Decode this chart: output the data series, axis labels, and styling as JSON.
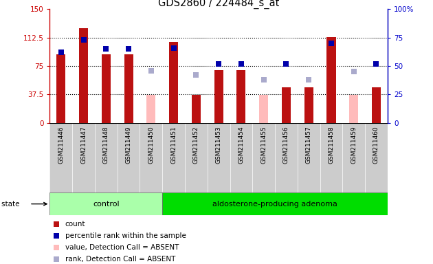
{
  "title": "GDS2860 / 224484_s_at",
  "samples": [
    "GSM211446",
    "GSM211447",
    "GSM211448",
    "GSM211449",
    "GSM211450",
    "GSM211451",
    "GSM211452",
    "GSM211453",
    "GSM211454",
    "GSM211455",
    "GSM211456",
    "GSM211457",
    "GSM211458",
    "GSM211459",
    "GSM211460"
  ],
  "count_present": [
    90,
    125,
    90,
    90,
    null,
    107,
    37,
    70,
    70,
    null,
    47,
    47,
    113,
    null,
    47
  ],
  "count_absent": [
    null,
    null,
    null,
    null,
    37,
    null,
    null,
    null,
    null,
    37,
    null,
    null,
    null,
    37,
    null
  ],
  "rank_present": [
    62,
    73,
    65,
    65,
    null,
    66,
    null,
    52,
    52,
    null,
    52,
    null,
    70,
    null,
    52
  ],
  "rank_absent": [
    null,
    null,
    null,
    null,
    46,
    null,
    42,
    null,
    null,
    38,
    null,
    38,
    null,
    45,
    null
  ],
  "n_control": 5,
  "n_adenoma": 10,
  "ylim_left": [
    0,
    150
  ],
  "ylim_right": [
    0,
    100
  ],
  "yticks_left": [
    0,
    37.5,
    75,
    112.5,
    150
  ],
  "ytick_labels_left": [
    "0",
    "37.5",
    "75",
    "112.5",
    "150"
  ],
  "yticks_right": [
    0,
    25,
    50,
    75,
    100
  ],
  "ytick_labels_right": [
    "0",
    "25",
    "50",
    "75",
    "100%"
  ],
  "bar_color_present": "#BB1111",
  "bar_color_absent": "#FFBBBB",
  "sq_color_present": "#0000AA",
  "sq_color_absent": "#AAAACC",
  "xtick_bg": "#CCCCCC",
  "control_color": "#AAFFAA",
  "adenoma_color": "#00DD00",
  "label_count": "count",
  "label_rank": "percentile rank within the sample",
  "label_val_absent": "value, Detection Call = ABSENT",
  "label_rank_absent": "rank, Detection Call = ABSENT",
  "bar_width": 0.4,
  "sq_size": 5.5,
  "left_ax_color": "#CC0000",
  "right_ax_color": "#0000CC",
  "grid_yticks": [
    37.5,
    75,
    112.5
  ]
}
